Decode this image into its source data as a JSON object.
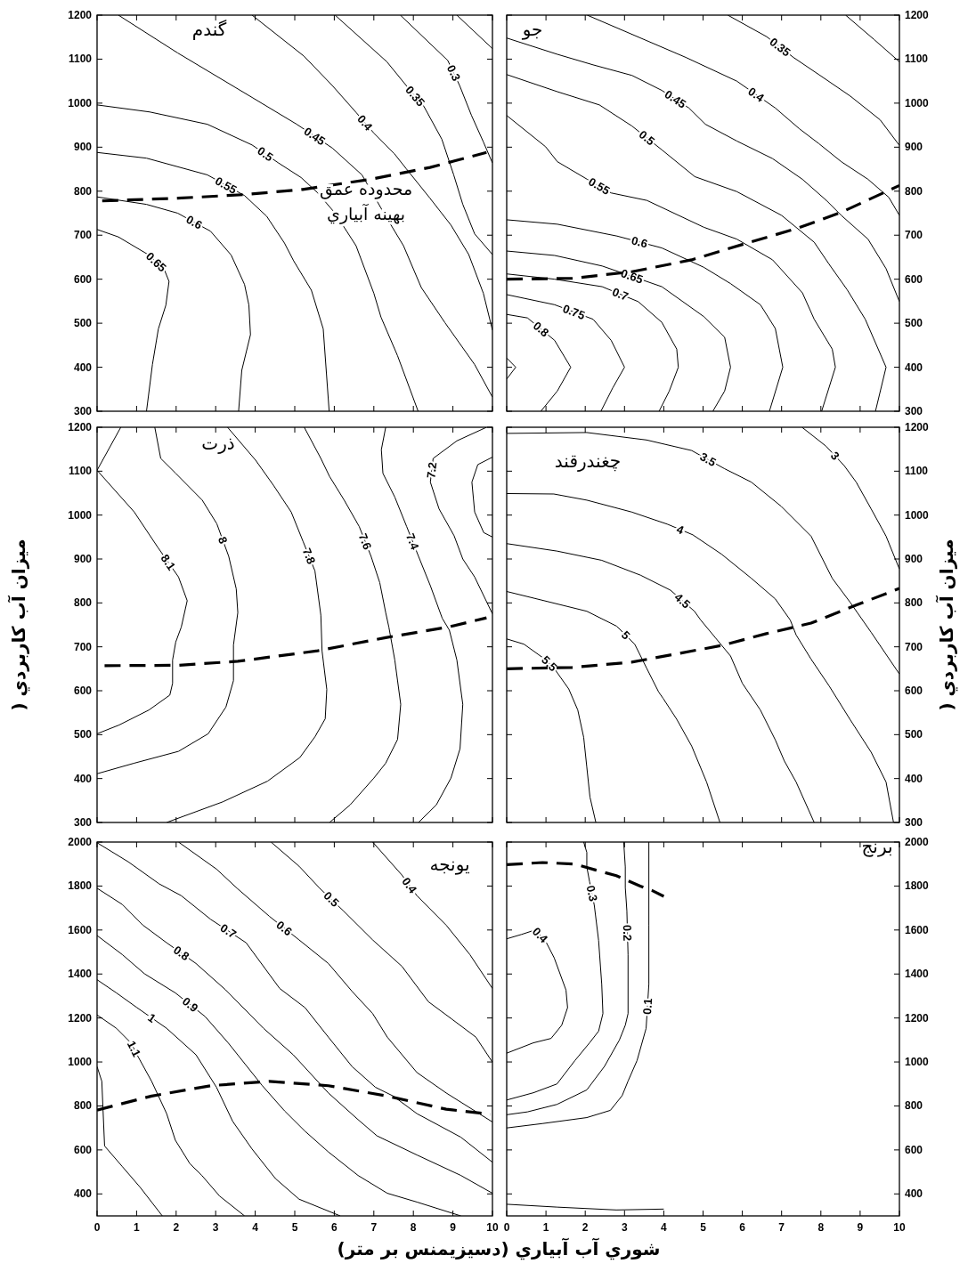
{
  "chart_data": [
    {
      "type": "line",
      "title": "گندم",
      "xlim": [
        0,
        10
      ],
      "ylim": [
        300,
        1200
      ],
      "xticks": [
        0,
        1,
        2,
        3,
        4,
        5,
        6,
        7,
        8,
        9,
        10
      ],
      "yticks": [
        300,
        400,
        500,
        600,
        700,
        800,
        900,
        1000,
        1100,
        1200
      ],
      "tick_labels": "y",
      "annotations": [
        "محدوده عمق",
        "بهينه آبياري"
      ],
      "series": [
        {
          "name": "0.45",
          "color": "#000000",
          "x": [
            0.54,
            2.04,
            3.92,
            5.05,
            5.95,
            6.7,
            7.3,
            7.75,
            8.2,
            8.8,
            9.55,
            10
          ],
          "values": [
            1200,
            1114,
            1013,
            952,
            898,
            837,
            743,
            676,
            581,
            501,
            406,
            332
          ]
        },
        {
          "name": "0.4",
          "color": "#000000",
          "x": [
            3.92,
            5.23,
            5.95,
            6.55,
            7.0,
            7.52,
            7.82,
            8.42,
            8.95,
            9.4,
            9.77,
            10
          ],
          "values": [
            1200,
            1107,
            1040,
            979,
            932,
            885,
            851,
            784,
            723,
            656,
            568,
            484
          ]
        },
        {
          "name": "0.35",
          "color": "#000000",
          "x": [
            6.02,
            7.33,
            7.82,
            8.27,
            8.72,
            9.02,
            9.25,
            9.55,
            10
          ],
          "values": [
            1200,
            1094,
            1040,
            992,
            918,
            837,
            770,
            703,
            656
          ]
        },
        {
          "name": "0.3",
          "color": "#000000",
          "x": [
            7.67,
            8.87,
            9.17,
            9.47,
            9.77,
            10
          ],
          "values": [
            1200,
            1097,
            1040,
            972,
            912,
            864
          ]
        },
        {
          "color": "#000000",
          "x": [
            9.1,
            10
          ],
          "values": [
            1200,
            1124
          ]
        },
        {
          "name": "0.5",
          "color": "#000000",
          "x": [
            0,
            1.33,
            2.79,
            3.92,
            4.59,
            5.16,
            5.57,
            6.02,
            6.55,
            7.0,
            7.18,
            7.6,
            8.12
          ],
          "values": [
            996,
            980,
            952,
            905,
            864,
            831,
            797,
            750,
            676,
            568,
            514,
            426,
            300
          ]
        },
        {
          "name": "0.55",
          "color": "#000000",
          "x": [
            0,
            1.25,
            2.79,
            3.73,
            4.29,
            4.74,
            4.97,
            5.42,
            5.72,
            5.87
          ],
          "values": [
            888,
            875,
            837,
            790,
            743,
            682,
            642,
            575,
            487,
            300
          ]
        },
        {
          "name": "0.6",
          "color": "#000000",
          "x": [
            0,
            1.25,
            2.04,
            2.87,
            3.39,
            3.73,
            3.84,
            3.88,
            3.66,
            3.58
          ],
          "values": [
            787,
            770,
            750,
            709,
            655,
            588,
            541,
            474,
            393,
            300
          ]
        },
        {
          "name": "0.65",
          "color": "#000000",
          "x": [
            0,
            0.54,
            1.29,
            1.7,
            1.82,
            1.74,
            1.55,
            1.4,
            1.25
          ],
          "values": [
            713,
            696,
            656,
            622,
            595,
            541,
            487,
            406,
            300
          ]
        },
        {
          "color": "#000000",
          "line_style": "dashed",
          "x": [
            0.13,
            2.04,
            3.69,
            5.2,
            6.92,
            8.42,
            9.85
          ],
          "values": [
            778,
            784,
            792,
            804,
            827,
            854,
            888
          ]
        }
      ]
    },
    {
      "type": "line",
      "title": "جو",
      "xlim": [
        0,
        10
      ],
      "ylim": [
        300,
        1200
      ],
      "xticks": [
        0,
        1,
        2,
        3,
        4,
        5,
        6,
        7,
        8,
        9,
        10
      ],
      "yticks": [
        300,
        400,
        500,
        600,
        700,
        800,
        900,
        1000,
        1100,
        1200
      ],
      "tick_labels": "y",
      "series": [
        {
          "name": "0.45",
          "color": "#000000",
          "x": [
            0,
            1.29,
            2.2,
            3.19,
            3.95,
            4.64,
            5.06,
            5.86,
            6.77,
            7.53,
            8.14,
            8.52,
            9.2,
            9.66,
            10
          ],
          "values": [
            1148,
            1111,
            1087,
            1063,
            1029,
            989,
            952,
            914,
            874,
            827,
            779,
            745,
            691,
            624,
            549
          ]
        },
        {
          "name": "0.4",
          "color": "#000000",
          "x": [
            2.05,
            4.56,
            5.86,
            6.84,
            7.45,
            7.95,
            8.52,
            9.2,
            9.73,
            10
          ],
          "values": [
            1200,
            1104,
            1050,
            989,
            942,
            908,
            867,
            827,
            786,
            745
          ]
        },
        {
          "name": "0.35",
          "color": "#000000",
          "x": [
            5.63,
            6.62,
            7.3,
            7.98,
            8.75,
            9.51,
            10
          ],
          "values": [
            1200,
            1151,
            1104,
            1063,
            1016,
            962,
            904
          ]
        },
        {
          "color": "#000000",
          "x": [
            8.63,
            9.35,
            10
          ],
          "values": [
            1200,
            1145,
            1094
          ]
        },
        {
          "name": "0.5",
          "color": "#000000",
          "x": [
            0,
            1.29,
            2.36,
            3.19,
            3.95,
            4.79,
            5.86,
            7.0,
            7.83,
            8.21,
            8.67,
            9.13,
            9.66,
            9.39
          ],
          "values": [
            1065,
            1026,
            996,
            948,
            894,
            833,
            799,
            745,
            684,
            634,
            576,
            509,
            400,
            300
          ]
        },
        {
          "name": "0.55",
          "color": "#000000",
          "x": [
            0,
            0.99,
            1.29,
            2.05,
            2.66,
            3.57,
            5.02,
            5.86,
            6.77,
            7.53,
            7.83,
            8.29,
            8.37,
            8.02
          ],
          "values": [
            972,
            901,
            867,
            827,
            796,
            779,
            718,
            691,
            644,
            569,
            509,
            441,
            400,
            300
          ]
        },
        {
          "name": "0.6",
          "color": "#000000",
          "x": [
            0,
            1.29,
            2.81,
            3.95,
            5.02,
            5.7,
            6.46,
            6.84,
            7.03,
            6.69
          ],
          "values": [
            735,
            725,
            698,
            671,
            627,
            590,
            542,
            488,
            400,
            300
          ]
        },
        {
          "name": "0.65",
          "color": "#000000",
          "x": [
            0,
            1.22,
            2.43,
            3.95,
            5.02,
            5.55,
            5.7,
            5.55,
            5.25
          ],
          "values": [
            664,
            654,
            630,
            583,
            515,
            468,
            400,
            346,
            300
          ]
        },
        {
          "name": "0.7",
          "color": "#000000",
          "x": [
            0,
            1.22,
            2.43,
            3.35,
            3.95,
            4.33,
            4.37,
            4.14,
            3.88
          ],
          "values": [
            612,
            600,
            583,
            549,
            502,
            441,
            400,
            346,
            300
          ]
        },
        {
          "name": "0.75",
          "color": "#000000",
          "x": [
            0,
            1.22,
            2.2,
            2.66,
            3.0,
            2.7,
            2.4
          ],
          "values": [
            565,
            542,
            509,
            461,
            400,
            353,
            300
          ]
        },
        {
          "name": "0.8",
          "color": "#000000",
          "x": [
            0,
            0.53,
            1.22,
            1.63,
            1.29,
            0.87
          ],
          "values": [
            520,
            512,
            461,
            400,
            346,
            300
          ]
        },
        {
          "color": "#000000",
          "x": [
            0,
            0.23,
            0
          ],
          "values": [
            421,
            400,
            373
          ]
        },
        {
          "color": "#000000",
          "line_style": "dashed",
          "x": [
            0,
            1.67,
            3.19,
            4.71,
            6.08,
            7.38,
            8.52,
            10
          ],
          "values": [
            600,
            602,
            617,
            644,
            681,
            715,
            752,
            813
          ]
        }
      ]
    },
    {
      "type": "line",
      "title": "ذرت",
      "xlim": [
        0,
        10
      ],
      "ylim": [
        300,
        1200
      ],
      "xticks": [
        0,
        1,
        2,
        3,
        4,
        5,
        6,
        7,
        8,
        9,
        10
      ],
      "yticks": [
        300,
        400,
        500,
        600,
        700,
        800,
        900,
        1000,
        1100,
        1200
      ],
      "tick_labels": "y",
      "ylabel": "ميزان آب كاربردي (",
      "series": [
        {
          "name": "8.1",
          "color": "#000000",
          "x": [
            0.6,
            0,
            0.94,
            1.54,
            2.06,
            2.28,
            2.13,
            1.99,
            1.91,
            1.91,
            1.84,
            1.31,
            0.56,
            0
          ],
          "values": [
            1200,
            1102,
            1007,
            926,
            859,
            805,
            745,
            711,
            670,
            617,
            590,
            556,
            522,
            502
          ]
        },
        {
          "name": "8",
          "color": "#000000",
          "x": [
            1.46,
            1.61,
            1.99,
            2.66,
            3.03,
            3.33,
            3.52,
            3.56,
            3.45,
            3.45,
            3.26,
            2.81,
            2.06,
            0.94,
            0
          ],
          "values": [
            1200,
            1129,
            1095,
            1034,
            980,
            906,
            832,
            778,
            704,
            623,
            563,
            502,
            462,
            435,
            411
          ]
        },
        {
          "name": "7.8",
          "color": "#000000",
          "x": [
            3.3,
            4.01,
            4.46,
            4.91,
            5.21,
            5.51,
            5.66,
            5.69,
            5.81,
            5.77,
            5.51,
            5.13,
            4.31,
            3.18,
            1.76
          ],
          "values": [
            1200,
            1125,
            1068,
            1007,
            940,
            873,
            772,
            691,
            603,
            536,
            495,
            448,
            394,
            347,
            300
          ]
        },
        {
          "name": "7.6",
          "color": "#000000",
          "x": [
            5.24,
            5.66,
            5.88,
            6.25,
            6.63,
            6.93,
            7.15,
            7.3,
            7.38,
            7.53,
            7.68,
            7.6,
            7.3,
            7.0,
            6.4,
            5.88
          ],
          "values": [
            1200,
            1129,
            1088,
            1034,
            974,
            906,
            846,
            778,
            745,
            670,
            569,
            489,
            435,
            401,
            340,
            300
          ]
        },
        {
          "name": "7.4",
          "color": "#000000",
          "x": [
            7.3,
            7.19,
            7.23,
            7.53,
            7.83,
            8.13,
            8.43,
            8.73,
            8.91,
            9.1,
            9.25,
            9.18,
            8.95,
            8.58,
            8.13
          ],
          "values": [
            1200,
            1149,
            1095,
            1041,
            974,
            906,
            839,
            765,
            738,
            670,
            569,
            468,
            401,
            340,
            300
          ]
        },
        {
          "name": "7.2",
          "color": "#000000",
          "x": [
            9.85,
            9.1,
            8.5,
            8.43,
            8.65,
            9.03,
            9.25,
            9.55,
            10
          ],
          "values": [
            1200,
            1169,
            1129,
            1075,
            1014,
            953,
            900,
            859,
            775
          ]
        },
        {
          "color": "#000000",
          "x": [
            10,
            9.63,
            9.48,
            9.55,
            9.78,
            10
          ],
          "values": [
            1132,
            1115,
            1075,
            1007,
            960,
            950
          ]
        },
        {
          "color": "#000000",
          "line_style": "dashed",
          "x": [
            0.19,
            2.06,
            3.56,
            5.58,
            7.3,
            8.88,
            9.85
          ],
          "values": [
            657,
            658,
            667,
            691,
            721,
            745,
            766
          ]
        }
      ]
    },
    {
      "type": "line",
      "title": "چغندرقند",
      "xlim": [
        0,
        10
      ],
      "ylim": [
        300,
        1200
      ],
      "xticks": [
        0,
        1,
        2,
        3,
        4,
        5,
        6,
        7,
        8,
        9,
        10
      ],
      "yticks": [
        300,
        400,
        500,
        600,
        700,
        800,
        900,
        1000,
        1100,
        1200
      ],
      "tick_labels": "y",
      "ylabel": "ميزان آب كاربردي (",
      "series": [
        {
          "name": "3.5",
          "color": "#000000",
          "x": [
            0,
            2.04,
            3.56,
            4.71,
            5.54,
            6.23,
            6.99,
            7.75,
            8.29,
            8.74,
            9.28,
            10
          ],
          "values": [
            1186,
            1188,
            1171,
            1147,
            1106,
            1075,
            1020,
            952,
            856,
            802,
            733,
            638
          ]
        },
        {
          "name": "3",
          "color": "#000000",
          "x": [
            7.52,
            8.13,
            8.59,
            8.9,
            9.28,
            9.66,
            10
          ],
          "values": [
            1200,
            1157,
            1113,
            1075,
            1014,
            952,
            877
          ]
        },
        {
          "name": "4",
          "color": "#000000",
          "x": [
            0,
            1.2,
            2.04,
            3.18,
            4.1,
            4.74,
            5.47,
            6.23,
            6.84,
            7.22,
            7.37,
            7.75,
            8.21,
            8.74,
            9.28,
            9.66,
            9.85
          ],
          "values": [
            1049,
            1048,
            1034,
            1007,
            979,
            955,
            911,
            856,
            809,
            761,
            727,
            672,
            611,
            535,
            460,
            392,
            300
          ]
        },
        {
          "name": "4.5",
          "color": "#000000",
          "x": [
            0,
            1.28,
            2.42,
            3.41,
            4.17,
            4.78,
            4.94,
            5.32,
            5.7,
            6.0,
            6.46,
            6.84,
            7.07,
            7.37,
            7.83
          ],
          "values": [
            935,
            918,
            897,
            863,
            829,
            781,
            761,
            720,
            679,
            617,
            556,
            488,
            440,
            392,
            300
          ]
        },
        {
          "name": "5",
          "color": "#000000",
          "x": [
            0,
            1.09,
            2.04,
            2.8,
            3.26,
            3.56,
            3.87,
            3.98,
            4.33,
            4.71,
            5.09,
            5.43
          ],
          "values": [
            826,
            802,
            781,
            747,
            706,
            652,
            597,
            583,
            535,
            474,
            392,
            300
          ]
        },
        {
          "name": "5.5",
          "color": "#000000",
          "x": [
            0,
            0.44,
            0.97,
            1.2,
            1.58,
            1.81,
            1.96,
            2.04,
            2.12,
            2.27
          ],
          "values": [
            718,
            706,
            672,
            652,
            604,
            556,
            494,
            426,
            358,
            300
          ]
        },
        {
          "color": "#000000",
          "line_style": "dashed",
          "x": [
            0,
            1.66,
            3.18,
            4.33,
            5.47,
            6.61,
            7.75,
            8.9,
            10
          ],
          "values": [
            650,
            653,
            665,
            684,
            703,
            730,
            754,
            795,
            833
          ]
        }
      ]
    },
    {
      "type": "line",
      "title": "يونجه",
      "xlim": [
        0,
        10
      ],
      "ylim": [
        300,
        2000
      ],
      "xticks": [
        0,
        1,
        2,
        3,
        4,
        5,
        6,
        7,
        8,
        9,
        10
      ],
      "yticks": [
        400,
        600,
        800,
        1000,
        1200,
        1400,
        1600,
        1800,
        2000
      ],
      "xlabel": "شوري آب آبياري (دسيزيمنس بر متر)",
      "series": [
        {
          "name": "0.4",
          "color": "#000000",
          "x": [
            6.97,
            7.71,
            8.09,
            8.83,
            9.43,
            10
          ],
          "values": [
            2000,
            1850,
            1756,
            1622,
            1488,
            1334
          ]
        },
        {
          "name": "0.5",
          "color": "#000000",
          "x": [
            4.4,
            5.11,
            5.63,
            6.22,
            6.97,
            7.71,
            8.38,
            8.98,
            9.58,
            10
          ],
          "values": [
            2000,
            1890,
            1790,
            1689,
            1555,
            1435,
            1274,
            1194,
            1113,
            999
          ]
        },
        {
          "name": "0.6",
          "color": "#000000",
          "x": [
            2.06,
            3.02,
            3.54,
            4.36,
            5.11,
            5.85,
            6.45,
            6.97,
            7.34,
            8.09,
            8.83,
            10
          ],
          "values": [
            2000,
            1877,
            1790,
            1662,
            1555,
            1448,
            1321,
            1220,
            1113,
            952,
            859,
            727
          ]
        },
        {
          "name": "0.7",
          "color": "#000000",
          "x": [
            0,
            0.79,
            1.57,
            2.13,
            2.87,
            3.77,
            4.62,
            5.26,
            5.85,
            6.45,
            7.04,
            7.49,
            8.09,
            9.2,
            10
          ],
          "values": [
            1997,
            1910,
            1810,
            1756,
            1649,
            1542,
            1334,
            1247,
            1113,
            979,
            885,
            845,
            765,
            658,
            544
          ]
        },
        {
          "name": "0.8",
          "color": "#000000",
          "x": [
            0,
            0.64,
            1.16,
            1.76,
            2.5,
            3.25,
            4.21,
            4.96,
            5.85,
            6.6,
            7.08,
            8.09,
            9.2,
            10
          ],
          "values": [
            1790,
            1716,
            1622,
            1542,
            1448,
            1328,
            1153,
            1033,
            859,
            738,
            664,
            577,
            484,
            403
          ]
        },
        {
          "name": "0.9",
          "color": "#000000",
          "x": [
            0,
            0.64,
            1.2,
            1.98,
            2.73,
            3.32,
            4.18,
            4.74,
            5.26,
            5.85,
            6.6,
            7.34,
            8.09,
            9.2
          ],
          "values": [
            1575,
            1488,
            1401,
            1314,
            1207,
            1086,
            892,
            778,
            685,
            591,
            484,
            403,
            363,
            300
          ]
        },
        {
          "name": "1",
          "color": "#000000",
          "x": [
            0,
            0.49,
            1.01,
            1.76,
            2.5,
            3.02,
            3.43,
            3.92,
            4.51,
            5.11,
            6.15
          ],
          "values": [
            1374,
            1314,
            1247,
            1153,
            1033,
            885,
            730,
            604,
            470,
            376,
            300
          ]
        },
        {
          "name": "1.1",
          "color": "#000000",
          "x": [
            0,
            0.49,
            0.86,
            1.01,
            1.38,
            1.76,
            1.98,
            2.35,
            2.65,
            3.1,
            3.73
          ],
          "values": [
            1214,
            1153,
            1086,
            1033,
            912,
            765,
            644,
            537,
            484,
            390,
            300
          ]
        },
        {
          "color": "#000000",
          "x": [
            0,
            0.12,
            0.19,
            0.64,
            1.09,
            1.65
          ],
          "values": [
            979,
            912,
            618,
            524,
            430,
            300
          ]
        },
        {
          "color": "#000000",
          "line_style": "dashed",
          "x": [
            0,
            1.38,
            2.87,
            4.36,
            5.85,
            7.34,
            8.83,
            9.95
          ],
          "values": [
            781,
            845,
            892,
            912,
            892,
            845,
            785,
            762
          ]
        }
      ]
    },
    {
      "type": "line",
      "title": "برنج",
      "xlim": [
        0,
        10
      ],
      "ylim": [
        300,
        2000
      ],
      "xticks": [
        0,
        1,
        2,
        3,
        4,
        5,
        6,
        7,
        8,
        9,
        10
      ],
      "yticks": [
        400,
        600,
        800,
        1000,
        1200,
        1400,
        1600,
        1800,
        2000
      ],
      "series": [
        {
          "name": "0.3",
          "color": "#000000",
          "x": [
            1.96,
            2.04,
            2.04,
            2.11,
            2.23,
            2.34,
            2.42,
            2.45,
            2.34,
            2.11,
            1.74,
            1.28,
            0.68,
            0
          ],
          "values": [
            2000,
            1953,
            1887,
            1820,
            1713,
            1553,
            1353,
            1220,
            1140,
            1087,
            1007,
            900,
            860,
            827
          ]
        },
        {
          "name": "0.2",
          "color": "#000000",
          "x": [
            2.98,
            3.02,
            3.02,
            3.06,
            3.09,
            3.09,
            3.02,
            2.87,
            2.49,
            2.04,
            1.28,
            0.53,
            0
          ],
          "values": [
            2000,
            1887,
            1793,
            1687,
            1487,
            1220,
            1167,
            1100,
            980,
            873,
            807,
            773,
            760
          ]
        },
        {
          "name": "0.1",
          "color": "#000000",
          "x": [
            3.62,
            3.62,
            3.62,
            3.55,
            3.32,
            3.09,
            2.94,
            2.64,
            2.04,
            0.91,
            0
          ],
          "values": [
            2000,
            1620,
            1353,
            1153,
            1007,
            913,
            847,
            780,
            747,
            720,
            700
          ]
        },
        {
          "name": "0.4",
          "color": "#000000",
          "x": [
            0,
            0.38,
            0.72,
            0.98,
            1.21,
            1.51,
            1.55,
            1.4,
            1.13,
            0.68,
            0
          ],
          "values": [
            1560,
            1580,
            1600,
            1553,
            1473,
            1327,
            1247,
            1167,
            1107,
            1087,
            1040
          ]
        },
        {
          "color": "#000000",
          "x": [
            0,
            1.28,
            2.79,
            4.0
          ],
          "values": [
            353,
            340,
            327,
            331
          ]
        },
        {
          "color": "#000000",
          "line_style": "dashed",
          "x": [
            0,
            0.91,
            1.74,
            2.26,
            2.79,
            3.4,
            3.7,
            4.0
          ],
          "values": [
            1897,
            1907,
            1900,
            1873,
            1847,
            1800,
            1780,
            1753
          ]
        }
      ]
    }
  ]
}
